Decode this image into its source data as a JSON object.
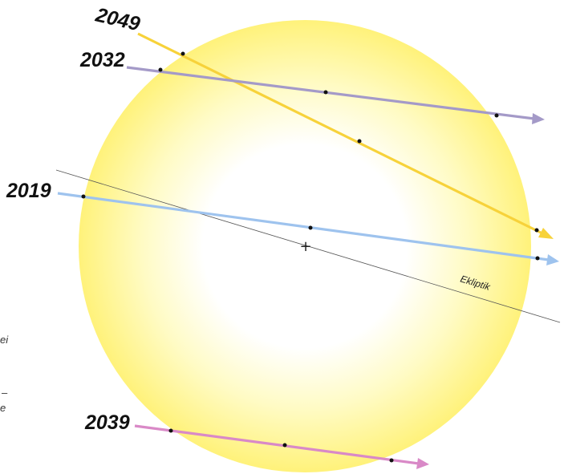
{
  "ecliptic": {
    "label": "Ekliptik"
  },
  "transits": [
    {
      "year": "2049",
      "color": "#f7d23a"
    },
    {
      "year": "2032",
      "color": "#a49ac8"
    },
    {
      "year": "2019",
      "color": "#9ec3ee"
    },
    {
      "year": "2039",
      "color": "#d989c7"
    }
  ],
  "sun": {
    "center_marker": "+"
  },
  "margin_fragments": [
    "ei",
    "–",
    "e"
  ],
  "colors": {
    "sun_edge": "#fff27a",
    "sun_core": "#ffffff",
    "ecliptic_line": "#555555",
    "contact_dot": "#111111"
  }
}
